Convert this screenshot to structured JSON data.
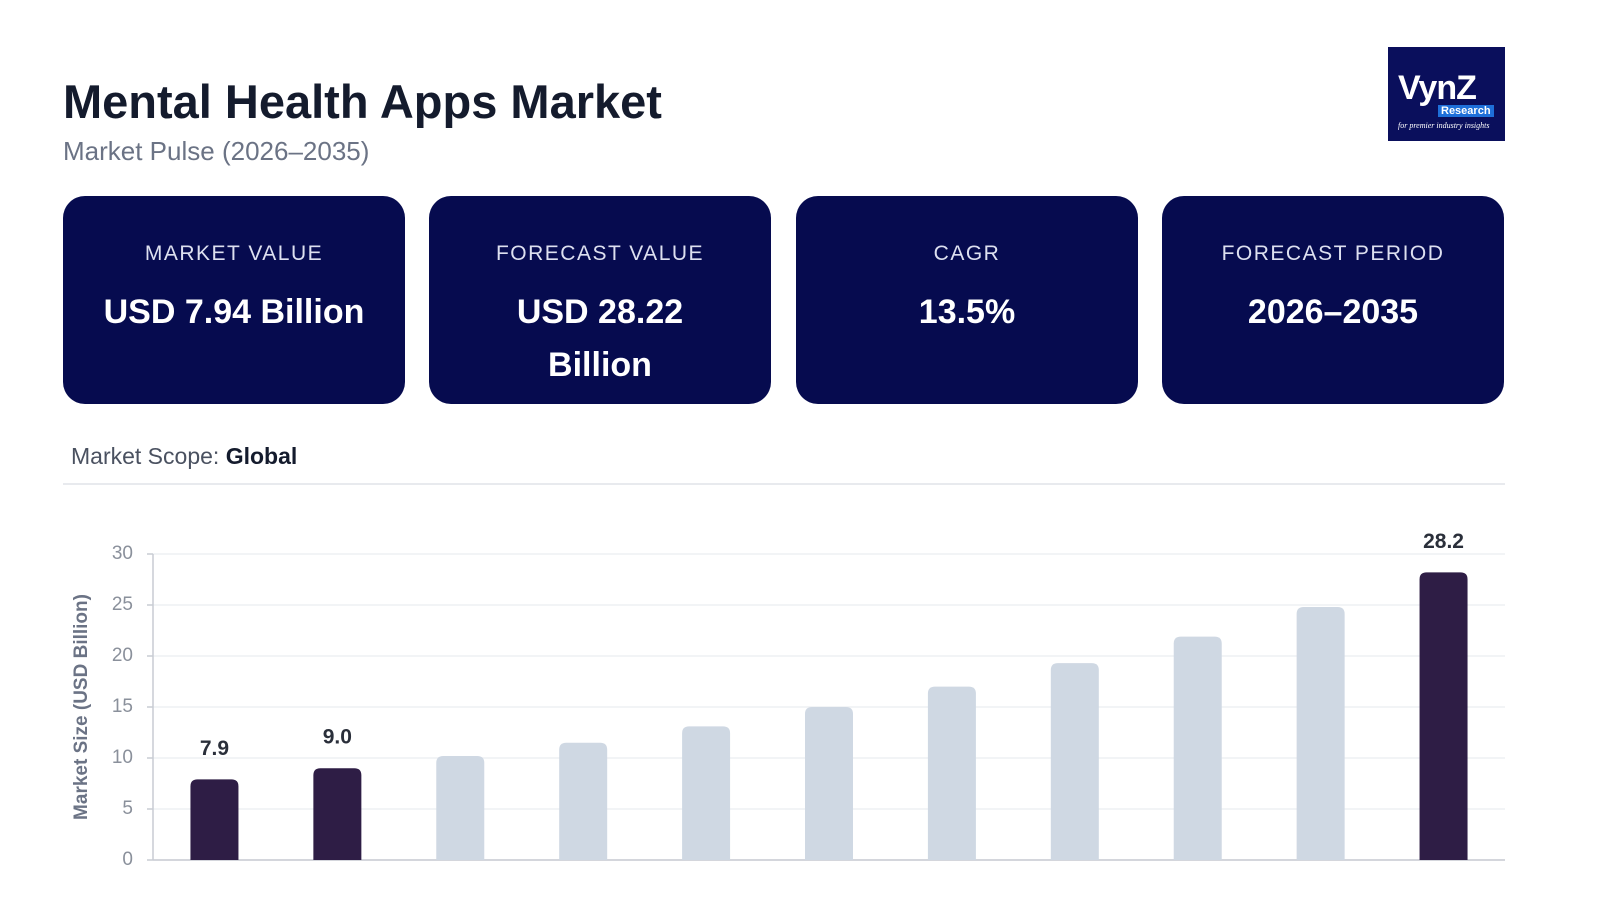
{
  "header": {
    "title": "Mental Health Apps Market",
    "subtitle": "Market Pulse (2026–2035)"
  },
  "logo": {
    "brand": "VynZ",
    "sub": "Research",
    "tagline": "for premier industry insights"
  },
  "cards": [
    {
      "label": "MARKET VALUE",
      "value": "USD 7.94 Billion"
    },
    {
      "label": "FORECAST VALUE",
      "value": "USD 28.22 Billion"
    },
    {
      "label": "CAGR",
      "value": "13.5%"
    },
    {
      "label": "FORECAST PERIOD",
      "value": "2026–2035"
    }
  ],
  "scope": {
    "label": "Market Scope:",
    "value": "Global"
  },
  "chart_data": {
    "type": "bar",
    "y_label": "Market Size (USD Billion)",
    "categories": [
      null,
      null,
      null,
      null,
      null,
      null,
      null,
      null,
      null,
      null,
      null
    ],
    "values": [
      7.9,
      9.0,
      10.2,
      11.5,
      13.1,
      15.0,
      17.0,
      19.3,
      21.9,
      24.8,
      28.2
    ],
    "value_labels": [
      "7.9",
      "9.0",
      null,
      null,
      null,
      null,
      null,
      null,
      null,
      null,
      "28.2"
    ],
    "colors": [
      "#2e1d45",
      "#2e1d45",
      "#cfd8e3",
      "#cfd8e3",
      "#cfd8e3",
      "#cfd8e3",
      "#cfd8e3",
      "#cfd8e3",
      "#cfd8e3",
      "#cfd8e3",
      "#2e1d45"
    ],
    "ylim": [
      0,
      30
    ],
    "yticks": [
      0,
      5,
      10,
      15,
      20,
      25,
      30
    ],
    "grid": true
  }
}
